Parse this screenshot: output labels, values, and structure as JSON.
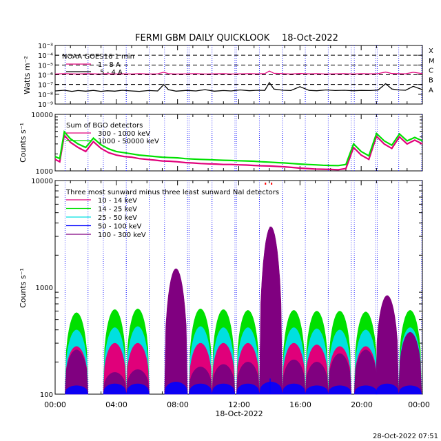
{
  "page": {
    "title": "FERMI GBM DAILY QUICKLOOK",
    "date": "18-Oct-2022",
    "footer_timestamp": "28-Oct-2022 07:51",
    "x_axis_label": "18-Oct-2022",
    "x_ticks": [
      "00:00",
      "04:00",
      "08:00",
      "12:00",
      "16:00",
      "20:00",
      "00:00"
    ]
  },
  "chart_data": [
    {
      "type": "line",
      "panel": "goes",
      "ylabel": "Watts m⁻²",
      "y_scale": "log",
      "ylim": [
        1e-09,
        0.001
      ],
      "y_tick_labels": [
        "10⁻³",
        "10⁻⁴",
        "10⁻⁵",
        "10⁻⁶",
        "10⁻⁷",
        "10⁻⁸",
        "10⁻⁹"
      ],
      "class_labels": [
        "X",
        "M",
        "C",
        "B",
        "A"
      ],
      "legend_title": "NOAA GOES16 1 min",
      "x_hours": [
        0,
        0.6,
        1.1,
        1.5,
        2.0,
        2.5,
        3.0,
        3.4,
        3.9,
        4.4,
        5.0,
        5.5,
        6.1,
        6.7,
        7.1,
        7.4,
        7.9,
        8.6,
        9.2,
        9.8,
        10.4,
        11.0,
        11.5,
        12.1,
        12.7,
        13.2,
        13.7,
        14.0,
        14.3,
        14.9,
        15.4,
        16.0,
        16.6,
        17.1,
        17.7,
        18.3,
        18.9,
        19.5,
        20.0,
        20.6,
        21.1,
        21.6,
        22.0,
        22.4,
        22.9,
        23.4,
        24.0
      ],
      "series": [
        {
          "name": "1 - 8 A",
          "color": "#e0007a",
          "values": [
            1.2e-06,
            1.3e-06,
            1.25e-06,
            1.2e-06,
            1.3e-06,
            1.25e-06,
            1.2e-06,
            1.3e-06,
            1.2e-06,
            1.25e-06,
            1.2e-06,
            1.3e-06,
            1.2e-06,
            1.25e-06,
            1.8e-06,
            1.3e-06,
            1.2e-06,
            1.25e-06,
            1.3e-06,
            1.2e-06,
            1.25e-06,
            1.3e-06,
            1.2e-06,
            1.25e-06,
            1.3e-06,
            1.25e-06,
            1.3e-06,
            2.4e-06,
            1.4e-06,
            1.3e-06,
            1.2e-06,
            1.35e-06,
            1.25e-06,
            1.3e-06,
            1.2e-06,
            1.25e-06,
            1.3e-06,
            1.2e-06,
            1.3e-06,
            1.25e-06,
            1.3e-06,
            1.9e-06,
            1.35e-06,
            1.3e-06,
            1.25e-06,
            1.8e-06,
            1.3e-06
          ]
        },
        {
          "name": ".5 - 4 A",
          "color": "#000000",
          "values": [
            2.2e-08,
            2.6e-08,
            2e-08,
            2.4e-08,
            2.1e-08,
            2.5e-08,
            2e-08,
            2.3e-08,
            2.1e-08,
            2.6e-08,
            2.2e-08,
            2e-08,
            2.4e-08,
            2.2e-08,
            1e-07,
            3e-08,
            2.1e-08,
            2.5e-08,
            2.2e-08,
            3e-08,
            2.1e-08,
            2.4e-08,
            2.2e-08,
            2.8e-08,
            2.3e-08,
            2.6e-08,
            2.5e-08,
            1.6e-07,
            3.4e-08,
            2.6e-08,
            2.4e-08,
            6e-08,
            2.5e-08,
            2.3e-08,
            2.8e-08,
            2.4e-08,
            2.6e-08,
            2.3e-08,
            2.5e-08,
            2.4e-08,
            2.7e-08,
            1.2e-07,
            3.5e-08,
            2.8e-08,
            2.6e-08,
            6.5e-08,
            3e-08
          ]
        }
      ]
    },
    {
      "type": "line",
      "panel": "bgo",
      "ylabel": "Counts s⁻¹",
      "y_scale": "log",
      "ylim": [
        1000,
        10000
      ],
      "y_tick_labels": [
        "10000",
        "1000"
      ],
      "legend_title": "Sum of BGO detectors",
      "x_hours": [
        0,
        0.3,
        0.6,
        1.0,
        1.5,
        2.0,
        2.5,
        3.0,
        3.5,
        4.0,
        4.5,
        5.0,
        5.5,
        6.0,
        6.5,
        7.0,
        7.5,
        8.0,
        8.5,
        9.0,
        9.5,
        10.0,
        10.5,
        11.0,
        11.5,
        12.0,
        12.5,
        13.0,
        13.5,
        14.0,
        14.5,
        15.0,
        15.5,
        16.0,
        16.5,
        17.0,
        17.5,
        18.0,
        18.5,
        19.0,
        19.5,
        20.0,
        20.5,
        21.0,
        21.5,
        22.0,
        22.5,
        23.0,
        23.5,
        24.0
      ],
      "series": [
        {
          "name": "300 - 1000 keV",
          "color": "#e0007a",
          "values": [
            1600,
            1450,
            4300,
            3200,
            2600,
            2200,
            3300,
            2500,
            2100,
            1900,
            1800,
            1750,
            1650,
            1600,
            1550,
            1500,
            1480,
            1450,
            1400,
            1380,
            1350,
            1330,
            1320,
            1300,
            1300,
            1280,
            1270,
            1250,
            1230,
            1220,
            1200,
            1180,
            1150,
            1120,
            1100,
            1080,
            1070,
            1060,
            1050,
            1100,
            2600,
            1900,
            1600,
            4100,
            3000,
            2500,
            4000,
            3000,
            3500,
            3000
          ]
        },
        {
          "name": "1000 - 50000 keV",
          "color": "#00e000",
          "values": [
            1800,
            1650,
            4900,
            3700,
            3000,
            2600,
            3800,
            2900,
            2450,
            2200,
            2100,
            2000,
            1900,
            1850,
            1800,
            1750,
            1720,
            1700,
            1650,
            1620,
            1600,
            1580,
            1560,
            1540,
            1530,
            1510,
            1500,
            1480,
            1450,
            1430,
            1400,
            1380,
            1350,
            1320,
            1300,
            1280,
            1260,
            1250,
            1240,
            1300,
            3000,
            2200,
            1850,
            4600,
            3400,
            2850,
            4500,
            3400,
            3900,
            3400
          ]
        }
      ]
    },
    {
      "type": "area",
      "panel": "nai",
      "ylabel": "Counts s⁻¹",
      "y_scale": "log",
      "ylim": [
        100,
        10000
      ],
      "y_tick_labels": [
        "10000",
        "1000",
        "100"
      ],
      "legend_title": "Three most sunward minus three least sunward NaI detectors",
      "orbit_peak_hours": [
        1.4,
        3.9,
        5.4,
        7.9,
        9.5,
        11.0,
        12.6,
        14.1,
        15.6,
        17.1,
        18.6,
        20.3,
        21.7,
        23.2
      ],
      "orbit_half_width_hours": 0.75,
      "spike_hour": 14.05,
      "series": [
        {
          "name": "10 - 14 keV",
          "color": "#e0007a",
          "peak_counts": [
            280,
            300,
            300,
            310,
            300,
            300,
            300,
            310,
            300,
            290,
            280,
            280,
            300,
            290
          ],
          "spike_counts": 1100
        },
        {
          "name": "14 - 25 keV",
          "color": "#00e000",
          "peak_counts": [
            580,
            620,
            630,
            650,
            630,
            620,
            610,
            640,
            610,
            600,
            600,
            590,
            640,
            610
          ],
          "spike_counts": 2500
        },
        {
          "name": "25 - 50 keV",
          "color": "#00e0e0",
          "peak_counts": [
            400,
            420,
            430,
            440,
            430,
            420,
            420,
            430,
            420,
            410,
            400,
            400,
            430,
            420
          ],
          "spike_counts": 1500
        },
        {
          "name": "50 - 100 keV",
          "color": "#0000ff",
          "peak_counts": [
            120,
            125,
            125,
            130,
            125,
            125,
            125,
            130,
            125,
            120,
            120,
            120,
            125,
            120
          ],
          "spike_counts": 140
        },
        {
          "name": "100 - 300 keV",
          "color": "#800080",
          "peak_counts": [
            260,
            160,
            170,
            1500,
            180,
            190,
            200,
            3700,
            210,
            200,
            240,
            260,
            840,
            380
          ],
          "spike_counts": 3700
        }
      ]
    }
  ]
}
